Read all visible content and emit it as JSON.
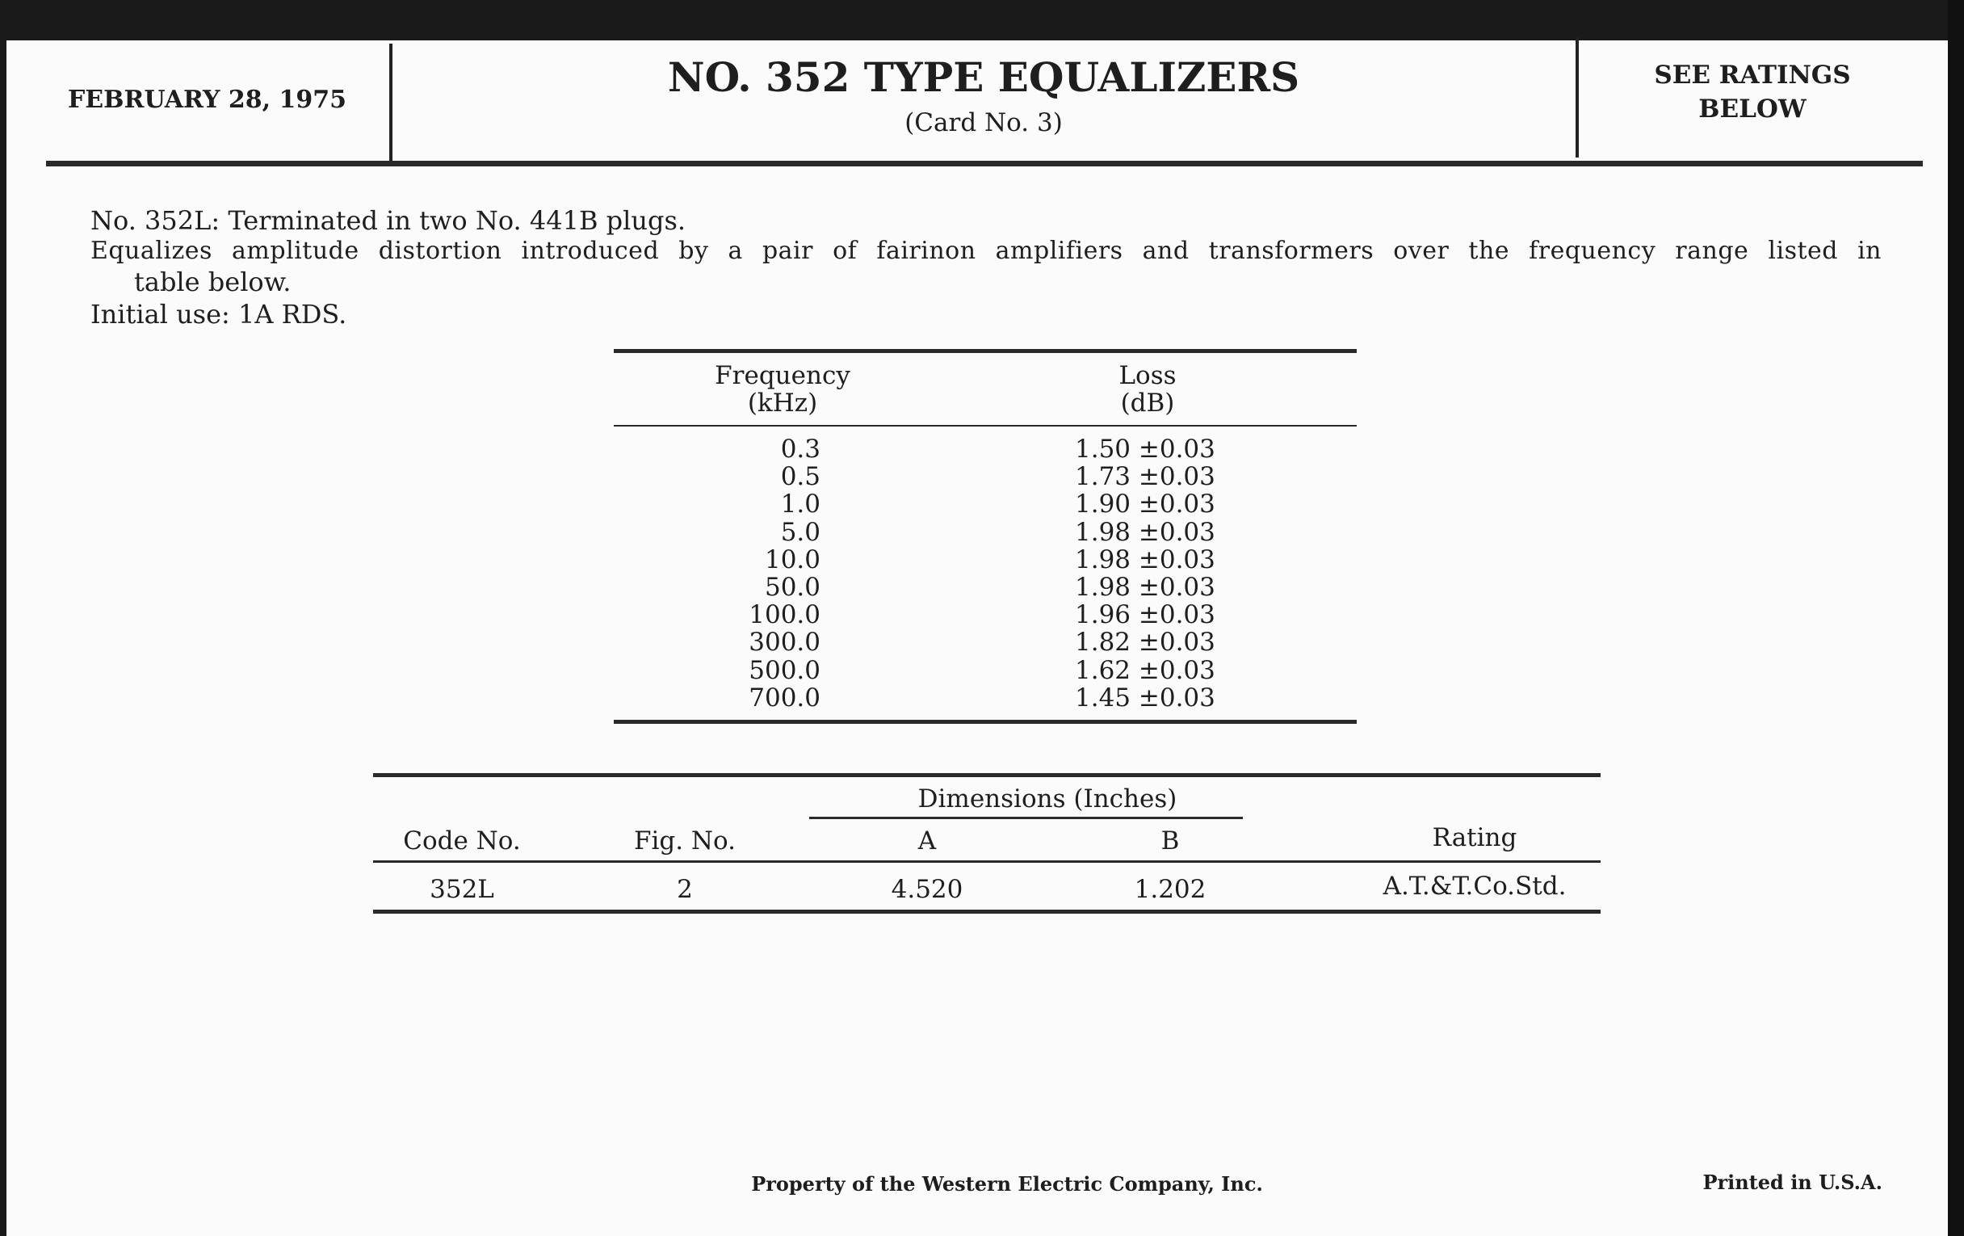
{
  "header": {
    "date": "FEBRUARY 28, 1975",
    "title": "NO. 352 TYPE EQUALIZERS",
    "subtitle": "(Card No. 3)",
    "ratings_line1": "SEE RATINGS",
    "ratings_line2": "BELOW"
  },
  "description": {
    "line1": "No. 352L: Terminated in two No. 441B plugs.",
    "line2": "Equalizes amplitude distortion introduced by a pair of fairinon amplifiers and transformers over the frequency range listed in",
    "line2_cont": "table below.",
    "line3": "Initial use: 1A RDS."
  },
  "loss_table": {
    "col_frequency": "Frequency",
    "col_frequency_unit": "(kHz)",
    "col_loss": "Loss",
    "col_loss_unit": "(dB)",
    "rows": [
      {
        "freq": "0.3",
        "loss": "1.50 ±0.03"
      },
      {
        "freq": "0.5",
        "loss": "1.73 ±0.03"
      },
      {
        "freq": "1.0",
        "loss": "1.90 ±0.03"
      },
      {
        "freq": "5.0",
        "loss": "1.98 ±0.03"
      },
      {
        "freq": "10.0",
        "loss": "1.98 ±0.03"
      },
      {
        "freq": "50.0",
        "loss": "1.98 ±0.03"
      },
      {
        "freq": "100.0",
        "loss": "1.96 ±0.03"
      },
      {
        "freq": "300.0",
        "loss": "1.82 ±0.03"
      },
      {
        "freq": "500.0",
        "loss": "1.62 ±0.03"
      },
      {
        "freq": "700.0",
        "loss": "1.45 ±0.03"
      }
    ]
  },
  "dims_table": {
    "group_header": "Dimensions (Inches)",
    "headers": [
      "Code No.",
      "Fig. No.",
      "A",
      "B",
      "Rating"
    ],
    "row": [
      "352L",
      "2",
      "4.520",
      "1.202",
      "A.T.&T.Co.Std."
    ]
  },
  "footer": {
    "property": "Property of the Western Electric Company, Inc.",
    "printed": "Printed in U.S.A."
  }
}
